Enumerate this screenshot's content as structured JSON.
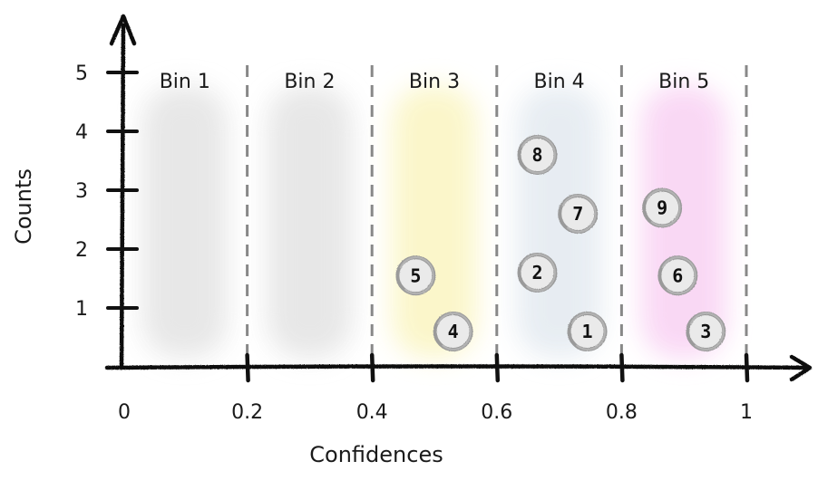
{
  "chart_data": {
    "type": "scatter",
    "xlabel": "Confidences",
    "ylabel": "Counts",
    "xlim": [
      0,
      1
    ],
    "ylim": [
      0,
      5
    ],
    "x_ticks": [
      "0",
      "0.2",
      "0.4",
      "0.6",
      "0.8",
      "1"
    ],
    "y_ticks": [
      "1",
      "2",
      "3",
      "4",
      "5"
    ],
    "bins": [
      {
        "label": "Bin 1",
        "range": [
          0.0,
          0.2
        ],
        "color": "#e6e6e6"
      },
      {
        "label": "Bin 2",
        "range": [
          0.2,
          0.4
        ],
        "color": "#e6e6e6"
      },
      {
        "label": "Bin 3",
        "range": [
          0.4,
          0.6
        ],
        "color": "#fbf6c8"
      },
      {
        "label": "Bin 4",
        "range": [
          0.6,
          0.8
        ],
        "color": "#e6ecf2"
      },
      {
        "label": "Bin 5",
        "range": [
          0.8,
          1.0
        ],
        "color": "#f9d6f4"
      }
    ],
    "points": [
      {
        "label": "1",
        "x": 0.745,
        "y": 0.6
      },
      {
        "label": "2",
        "x": 0.665,
        "y": 1.6
      },
      {
        "label": "3",
        "x": 0.935,
        "y": 0.6
      },
      {
        "label": "4",
        "x": 0.53,
        "y": 0.6
      },
      {
        "label": "5",
        "x": 0.47,
        "y": 1.55
      },
      {
        "label": "6",
        "x": 0.89,
        "y": 1.55
      },
      {
        "label": "7",
        "x": 0.73,
        "y": 2.6
      },
      {
        "label": "8",
        "x": 0.665,
        "y": 3.6
      },
      {
        "label": "9",
        "x": 0.865,
        "y": 2.7
      }
    ],
    "grid": false
  }
}
